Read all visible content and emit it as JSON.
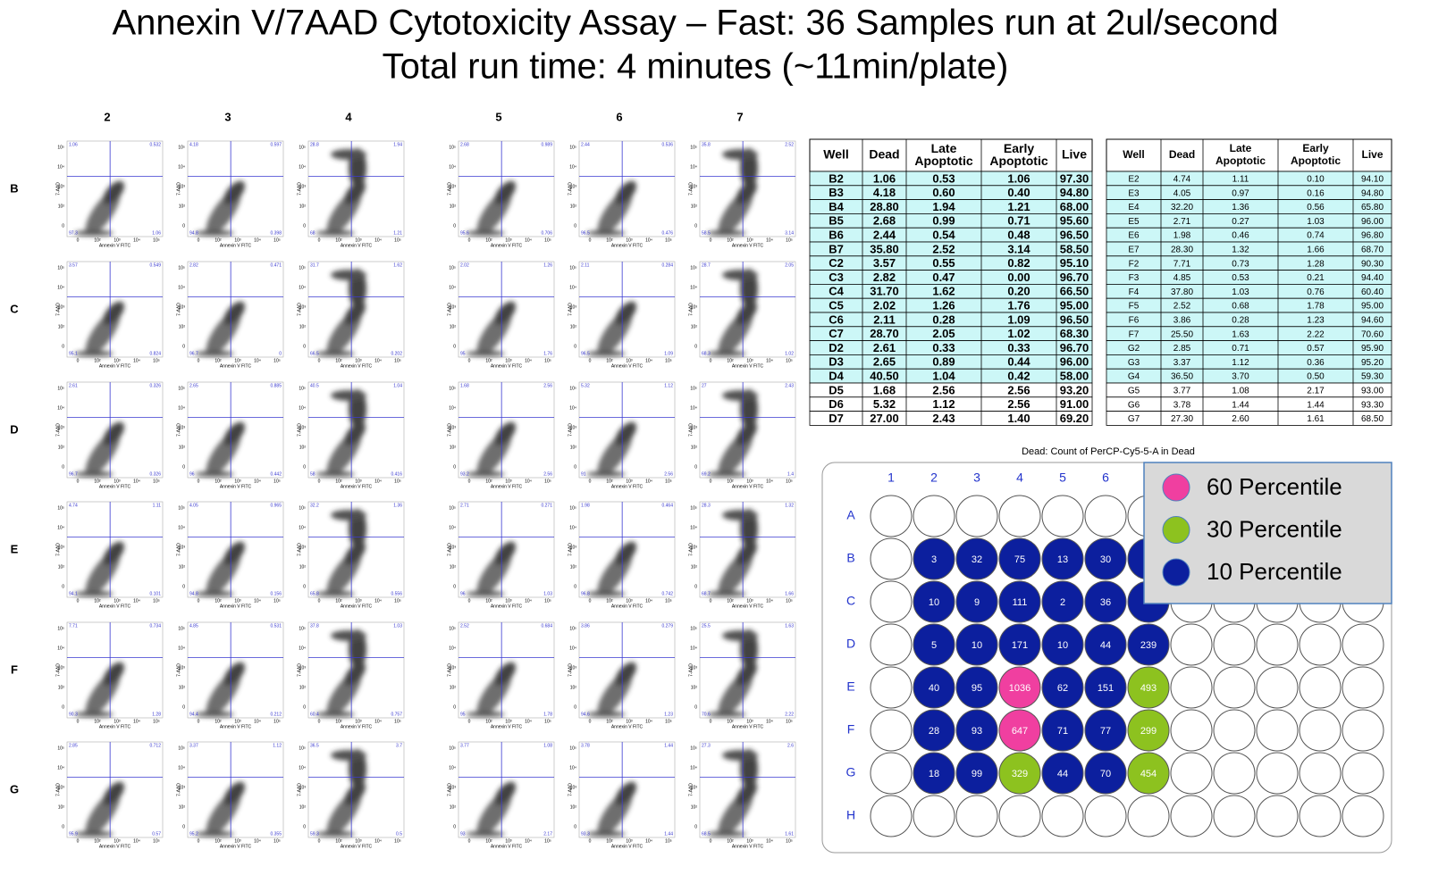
{
  "header": {
    "title_line1": "Annexin V/7AAD Cytotoxicity Assay – Fast: 36 Samples run at 2ul/second",
    "title_line2": "Total run time: 4 minutes (~11min/plate)"
  },
  "plots": {
    "columns": [
      "2",
      "3",
      "4",
      "5",
      "6",
      "7"
    ],
    "rows": [
      "B",
      "C",
      "D",
      "E",
      "F",
      "G"
    ],
    "x_axis_label": "Annexin V FITC",
    "y_axis_label": "7-AAD",
    "tick_labels": [
      "0",
      "10²",
      "10³",
      "10⁴",
      "10⁵"
    ],
    "cells": [
      [
        [
          "1.06",
          "0.532",
          "97.3",
          "1.06"
        ],
        [
          "4.18",
          "0.597",
          "94.8",
          "0.398"
        ],
        [
          "28.8",
          "1.94",
          "68",
          "1.21"
        ],
        [
          "2.68",
          "0.989",
          "95.6",
          "0.706"
        ],
        [
          "2.44",
          "0.536",
          "96.5",
          "0.476"
        ],
        [
          "35.8",
          "2.52",
          "58.5",
          "3.14"
        ]
      ],
      [
        [
          "3.57",
          "0.549",
          "95.1",
          "0.824"
        ],
        [
          "2.82",
          "0.471",
          "96.7",
          "0"
        ],
        [
          "31.7",
          "1.62",
          "66.5",
          "0.202"
        ],
        [
          "2.02",
          "1.26",
          "95",
          "1.76"
        ],
        [
          "2.11",
          "0.284",
          "96.5",
          "1.09"
        ],
        [
          "28.7",
          "2.05",
          "68.3",
          "1.02"
        ]
      ],
      [
        [
          "2.61",
          "0.326",
          "96.7",
          "0.326"
        ],
        [
          "2.65",
          "0.885",
          "96",
          "0.442"
        ],
        [
          "40.5",
          "1.04",
          "58",
          "0.416"
        ],
        [
          "1.68",
          "2.56",
          "93.2",
          "2.56"
        ],
        [
          "5.32",
          "1.12",
          "91",
          "2.56"
        ],
        [
          "27",
          "2.43",
          "69.2",
          "1.4"
        ]
      ],
      [
        [
          "4.74",
          "1.11",
          "94.1",
          "0.101"
        ],
        [
          "4.05",
          "0.965",
          "94.8",
          "0.156"
        ],
        [
          "32.2",
          "1.36",
          "65.8",
          "0.556"
        ],
        [
          "2.71",
          "0.271",
          "96",
          "1.03"
        ],
        [
          "1.98",
          "0.464",
          "96.8",
          "0.742"
        ],
        [
          "28.3",
          "1.32",
          "68.7",
          "1.66"
        ]
      ],
      [
        [
          "7.71",
          "0.734",
          "90.3",
          "1.28"
        ],
        [
          "4.85",
          "0.531",
          "94.4",
          "0.212"
        ],
        [
          "37.8",
          "1.03",
          "60.4",
          "0.757"
        ],
        [
          "2.52",
          "0.684",
          "95",
          "1.78"
        ],
        [
          "3.86",
          "0.279",
          "94.6",
          "1.23"
        ],
        [
          "25.5",
          "1.63",
          "70.6",
          "2.22"
        ]
      ],
      [
        [
          "2.85",
          "0.712",
          "95.9",
          "0.57"
        ],
        [
          "3.37",
          "1.12",
          "95.2",
          "0.355"
        ],
        [
          "36.5",
          "3.7",
          "59.3",
          "0.5"
        ],
        [
          "3.77",
          "1.08",
          "93",
          "2.17"
        ],
        [
          "3.78",
          "1.44",
          "93.3",
          "1.44"
        ],
        [
          "27.3",
          "2.6",
          "68.5",
          "1.61"
        ]
      ]
    ]
  },
  "tables": [
    {
      "header": [
        "Well",
        "Dead",
        "Late Apoptotic",
        "Early Apoptotic",
        "Live"
      ],
      "rows": [
        [
          "B2",
          "1.06",
          "0.53",
          "1.06",
          "97.30"
        ],
        [
          "B3",
          "4.18",
          "0.60",
          "0.40",
          "94.80"
        ],
        [
          "B4",
          "28.80",
          "1.94",
          "1.21",
          "68.00"
        ],
        [
          "B5",
          "2.68",
          "0.99",
          "0.71",
          "95.60"
        ],
        [
          "B6",
          "2.44",
          "0.54",
          "0.48",
          "96.50"
        ],
        [
          "B7",
          "35.80",
          "2.52",
          "3.14",
          "58.50"
        ],
        [
          "C2",
          "3.57",
          "0.55",
          "0.82",
          "95.10"
        ],
        [
          "C3",
          "2.82",
          "0.47",
          "0.00",
          "96.70"
        ],
        [
          "C4",
          "31.70",
          "1.62",
          "0.20",
          "66.50"
        ],
        [
          "C5",
          "2.02",
          "1.26",
          "1.76",
          "95.00"
        ],
        [
          "C6",
          "2.11",
          "0.28",
          "1.09",
          "96.50"
        ],
        [
          "C7",
          "28.70",
          "2.05",
          "1.02",
          "68.30"
        ],
        [
          "D2",
          "2.61",
          "0.33",
          "0.33",
          "96.70"
        ],
        [
          "D3",
          "2.65",
          "0.89",
          "0.44",
          "96.00"
        ],
        [
          "D4",
          "40.50",
          "1.04",
          "0.42",
          "58.00"
        ],
        [
          "D5",
          "1.68",
          "2.56",
          "2.56",
          "93.20"
        ],
        [
          "D6",
          "5.32",
          "1.12",
          "2.56",
          "91.00"
        ],
        [
          "D7",
          "27.00",
          "2.43",
          "1.40",
          "69.20"
        ]
      ]
    },
    {
      "header": [
        "Well",
        "Dead",
        "Late Apoptotic",
        "Early Apoptotic",
        "Live"
      ],
      "rows": [
        [
          "E2",
          "4.74",
          "1.11",
          "0.10",
          "94.10"
        ],
        [
          "E3",
          "4.05",
          "0.97",
          "0.16",
          "94.80"
        ],
        [
          "E4",
          "32.20",
          "1.36",
          "0.56",
          "65.80"
        ],
        [
          "E5",
          "2.71",
          "0.27",
          "1.03",
          "96.00"
        ],
        [
          "E6",
          "1.98",
          "0.46",
          "0.74",
          "96.80"
        ],
        [
          "E7",
          "28.30",
          "1.32",
          "1.66",
          "68.70"
        ],
        [
          "F2",
          "7.71",
          "0.73",
          "1.28",
          "90.30"
        ],
        [
          "F3",
          "4.85",
          "0.53",
          "0.21",
          "94.40"
        ],
        [
          "F4",
          "37.80",
          "1.03",
          "0.76",
          "60.40"
        ],
        [
          "F5",
          "2.52",
          "0.68",
          "1.78",
          "95.00"
        ],
        [
          "F6",
          "3.86",
          "0.28",
          "1.23",
          "94.60"
        ],
        [
          "F7",
          "25.50",
          "1.63",
          "2.22",
          "70.60"
        ],
        [
          "G2",
          "2.85",
          "0.71",
          "0.57",
          "95.90"
        ],
        [
          "G3",
          "3.37",
          "1.12",
          "0.36",
          "95.20"
        ],
        [
          "G4",
          "36.50",
          "3.70",
          "0.50",
          "59.30"
        ],
        [
          "G5",
          "3.77",
          "1.08",
          "2.17",
          "93.00"
        ],
        [
          "G6",
          "3.78",
          "1.44",
          "1.44",
          "93.30"
        ],
        [
          "G7",
          "27.30",
          "2.60",
          "1.61",
          "68.50"
        ]
      ]
    }
  ],
  "plate": {
    "title": "Dead: Count of PerCP-Cy5-5-A in Dead",
    "columns": [
      "1",
      "2",
      "3",
      "4",
      "5",
      "6"
    ],
    "rows": [
      "A",
      "B",
      "C",
      "D",
      "E",
      "F",
      "G",
      "H"
    ],
    "values": [
      [
        3,
        32,
        75,
        13,
        30,
        null
      ],
      [
        10,
        9,
        111,
        2,
        36,
        null
      ],
      [
        5,
        10,
        171,
        10,
        44,
        239
      ],
      [
        40,
        95,
        1036,
        62,
        151,
        493
      ],
      [
        28,
        93,
        647,
        71,
        77,
        299
      ],
      [
        18,
        99,
        329,
        44,
        70,
        454
      ]
    ],
    "colors": [
      [
        "#0c1f9e",
        "#0c1f9e",
        "#0c1f9e",
        "#0c1f9e",
        "#0c1f9e",
        "#0c1f9e"
      ],
      [
        "#0c1f9e",
        "#0c1f9e",
        "#0c1f9e",
        "#0c1f9e",
        "#0c1f9e",
        "#0c1f9e"
      ],
      [
        "#0c1f9e",
        "#0c1f9e",
        "#0c1f9e",
        "#0c1f9e",
        "#0c1f9e",
        "#0c1f9e"
      ],
      [
        "#0c1f9e",
        "#0c1f9e",
        "#f03fa0",
        "#0c1f9e",
        "#0c1f9e",
        "#8dc21f"
      ],
      [
        "#0c1f9e",
        "#0c1f9e",
        "#f03fa0",
        "#0c1f9e",
        "#0c1f9e",
        "#8dc21f"
      ],
      [
        "#0c1f9e",
        "#0c1f9e",
        "#8dc21f",
        "#0c1f9e",
        "#0c1f9e",
        "#8dc21f"
      ]
    ],
    "legend": [
      {
        "name": "60 Percentile",
        "color": "#f03fa0"
      },
      {
        "name": "30 Percentile",
        "color": "#8dc21f"
      },
      {
        "name": "10 Percentile",
        "color": "#0c1f9e"
      }
    ]
  }
}
